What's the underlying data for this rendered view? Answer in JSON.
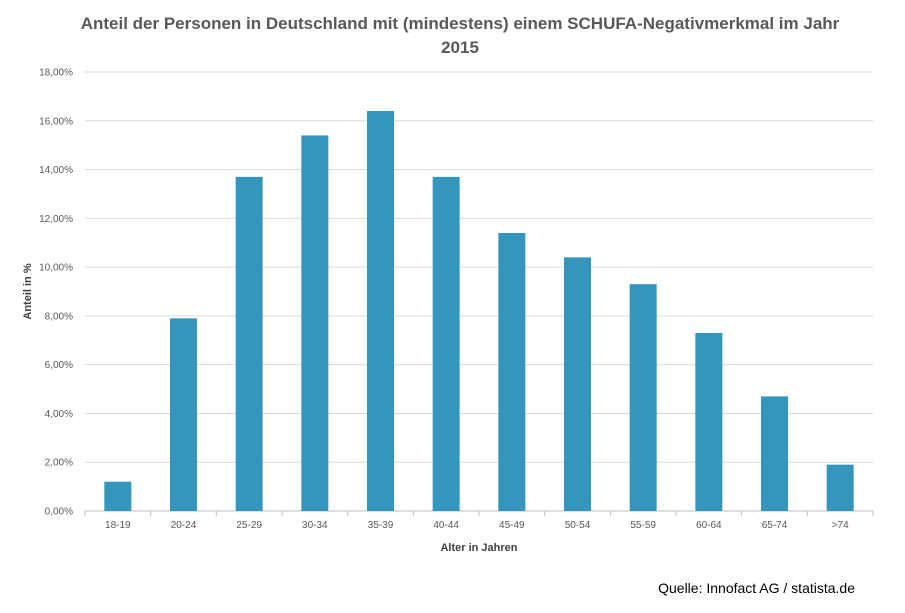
{
  "chart_data": {
    "type": "bar",
    "title": "Anteil der Personen in Deutschland mit (mindestens) einem SCHUFA-Negativmerkmal im Jahr 2015",
    "xlabel": "Alter in Jahren",
    "ylabel": "Anteil in %",
    "categories": [
      "18-19",
      "20-24",
      "25-29",
      "30-34",
      "35-39",
      "40-44",
      "45-49",
      "50-54",
      "55-59",
      "60-64",
      "65-74",
      ">74"
    ],
    "values": [
      1.2,
      7.9,
      13.7,
      15.4,
      16.4,
      13.7,
      11.4,
      10.4,
      9.3,
      7.3,
      4.7,
      1.9
    ],
    "ylim": [
      0,
      18
    ],
    "yticks": [
      "0,00%",
      "2,00%",
      "4,00%",
      "6,00%",
      "8,00%",
      "10,00%",
      "12,00%",
      "14,00%",
      "16,00%",
      "18,00%"
    ],
    "grid": true,
    "bar_color": "#3596bd",
    "source": "Quelle: Innofact AG / statista.de"
  }
}
